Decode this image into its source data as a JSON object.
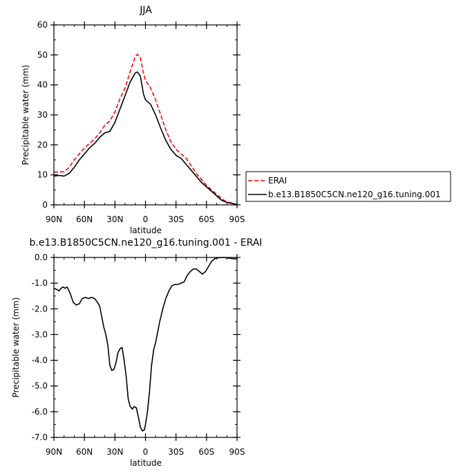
{
  "chart_data": [
    {
      "type": "line",
      "title": "JJA",
      "xlabel": "latitude",
      "ylabel": "Precipitable water (mm)",
      "xlim": [
        90,
        -90
      ],
      "ylim": [
        0,
        60
      ],
      "xticks": [
        90,
        60,
        30,
        0,
        -30,
        -60,
        -90
      ],
      "xtick_labels": [
        "90N",
        "60N",
        "30N",
        "0",
        "30S",
        "60S",
        "90S"
      ],
      "yticks": [
        0,
        10,
        20,
        30,
        40,
        50,
        60
      ],
      "ytick_labels": [
        "0",
        "10",
        "20",
        "30",
        "40",
        "50",
        "60"
      ],
      "legend": "right",
      "x": [
        90,
        85,
        80,
        75,
        70,
        65,
        60,
        55,
        50,
        45,
        40,
        35,
        30,
        25,
        20,
        15,
        10,
        8,
        5,
        2,
        0,
        -5,
        -10,
        -15,
        -20,
        -25,
        -30,
        -35,
        -40,
        -45,
        -50,
        -55,
        -60,
        -65,
        -70,
        -75,
        -80,
        -85,
        -90
      ],
      "series": [
        {
          "name": "ERAI",
          "color": "#ff0000",
          "dash": "dashed",
          "values": [
            10.9,
            11.0,
            11.0,
            12.5,
            15.0,
            17.0,
            19.0,
            20.5,
            22.0,
            24.0,
            26.5,
            28.0,
            31.0,
            35.5,
            39.0,
            44.5,
            49.5,
            50.2,
            49.0,
            44.0,
            41.5,
            39.0,
            35.0,
            30.0,
            25.0,
            21.0,
            18.5,
            17.0,
            15.5,
            13.0,
            10.5,
            8.5,
            6.5,
            5.0,
            3.5,
            2.0,
            1.0,
            0.6,
            0.1
          ]
        },
        {
          "name": "b.e13.B1850C5CN.ne120_g16.tuning.001",
          "color": "#000000",
          "dash": "solid",
          "values": [
            9.6,
            9.8,
            9.6,
            10.5,
            12.5,
            15.0,
            17.0,
            19.0,
            20.5,
            22.5,
            24.0,
            24.5,
            27.5,
            32.0,
            36.5,
            41.0,
            44.0,
            44.3,
            43.0,
            37.0,
            35.0,
            33.5,
            30.0,
            25.5,
            21.5,
            18.5,
            16.5,
            15.5,
            13.5,
            11.5,
            9.5,
            7.5,
            6.0,
            4.5,
            3.0,
            1.5,
            0.8,
            0.5,
            0.1
          ]
        }
      ]
    },
    {
      "type": "line",
      "title": "b.e13.B1850C5CN.ne120_g16.tuning.001  -  ERAI",
      "xlabel": "latitude",
      "ylabel": "Precipitable water (mm)",
      "xlim": [
        90,
        -90
      ],
      "ylim": [
        -7.0,
        0.0
      ],
      "xticks": [
        90,
        60,
        30,
        0,
        -30,
        -60,
        -90
      ],
      "xtick_labels": [
        "90N",
        "60N",
        "30N",
        "0",
        "30S",
        "60S",
        "90S"
      ],
      "yticks": [
        0,
        -1,
        -2,
        -3,
        -4,
        -5,
        -6,
        -7
      ],
      "ytick_labels": [
        "0.0",
        "-1.0",
        "-2.0",
        "-3.0",
        "-4.0",
        "-5.0",
        "-6.0",
        "-7.0"
      ],
      "x": [
        90,
        87,
        85,
        83,
        81,
        79,
        77,
        74,
        71,
        68,
        65,
        62,
        59,
        56,
        53,
        50,
        47,
        45,
        43,
        41,
        39,
        37,
        35,
        33,
        31,
        29,
        27,
        25,
        23,
        21,
        19,
        17,
        15,
        13,
        11,
        9,
        7,
        5,
        3,
        1,
        0,
        -2,
        -4,
        -6,
        -8,
        -10,
        -12,
        -14,
        -17,
        -20,
        -23,
        -26,
        -29,
        -32,
        -35,
        -38,
        -41,
        -44,
        -47,
        -50,
        -53,
        -56,
        -59,
        -62,
        -65,
        -68,
        -71,
        -74,
        -77,
        -80,
        -83,
        -86,
        -90
      ],
      "series": [
        {
          "name": "",
          "color": "#000000",
          "dash": "solid",
          "values": [
            -1.2,
            -1.25,
            -1.3,
            -1.2,
            -1.15,
            -1.2,
            -1.15,
            -1.4,
            -1.75,
            -1.85,
            -1.8,
            -1.6,
            -1.55,
            -1.6,
            -1.55,
            -1.6,
            -1.75,
            -1.9,
            -2.3,
            -2.7,
            -3.0,
            -3.4,
            -4.2,
            -4.4,
            -4.35,
            -4.1,
            -3.7,
            -3.55,
            -3.5,
            -4.0,
            -4.6,
            -5.5,
            -5.8,
            -5.9,
            -5.8,
            -5.85,
            -6.2,
            -6.6,
            -6.75,
            -6.7,
            -6.5,
            -6.0,
            -5.2,
            -4.2,
            -3.6,
            -3.3,
            -2.9,
            -2.5,
            -2.0,
            -1.6,
            -1.3,
            -1.1,
            -1.05,
            -1.05,
            -1.0,
            -0.95,
            -0.7,
            -0.55,
            -0.45,
            -0.45,
            -0.55,
            -0.65,
            -0.55,
            -0.35,
            -0.15,
            -0.05,
            -0.02,
            0.0,
            0.0,
            -0.02,
            -0.03,
            -0.05,
            -0.05
          ]
        }
      ]
    }
  ]
}
